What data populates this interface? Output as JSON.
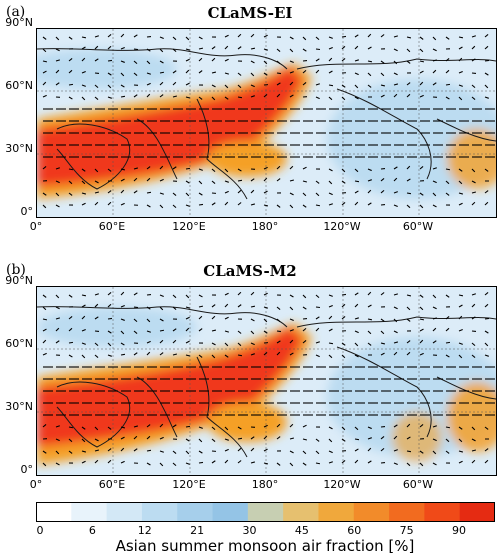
{
  "panels": [
    {
      "label": "(a)",
      "title": "CLaMS-EI"
    },
    {
      "label": "(b)",
      "title": "CLaMS-M2"
    }
  ],
  "lat_ticks": [
    "90°N",
    "60°N",
    "30°N",
    "0°"
  ],
  "lon_ticks": [
    "0°",
    "60°E",
    "120°E",
    "180°",
    "120°W",
    "60°W"
  ],
  "colorbar": {
    "ticks": [
      "0",
      "6",
      "12",
      "21",
      "30",
      "45",
      "60",
      "75",
      "90"
    ],
    "title": "Asian summer monsoon air fraction [%]",
    "colors": [
      "#ffffff",
      "#e8f3fb",
      "#d3e8f6",
      "#bcdcf1",
      "#a6cfeb",
      "#94c4e6",
      "#c7cfb2",
      "#e6c06f",
      "#f0a83c",
      "#f28b2a",
      "#f26b1f",
      "#f04a18",
      "#e52b12"
    ]
  },
  "colors": {
    "high": "#f0381a",
    "mid": "#f5a028",
    "low": "#9fcbe8",
    "coast": "#1a1a1a"
  }
}
